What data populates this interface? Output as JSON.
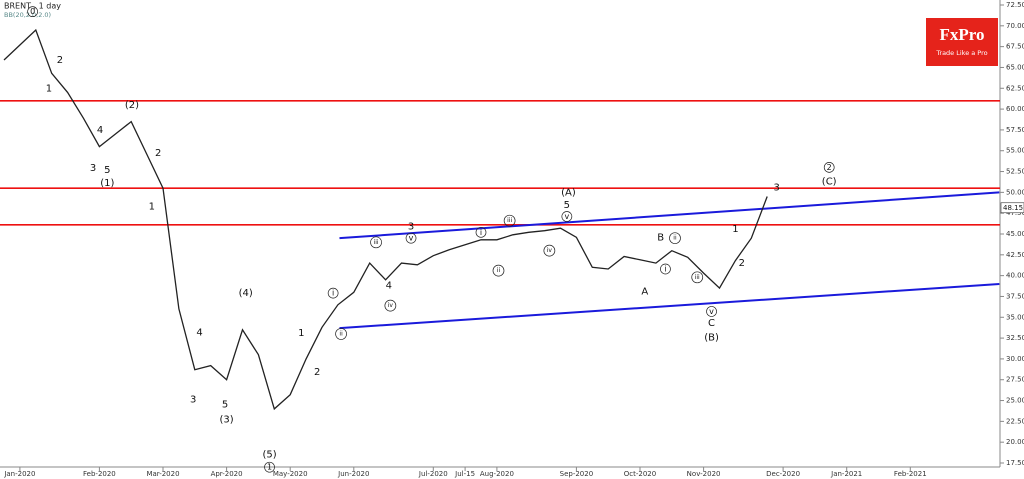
{
  "chart_data": {
    "type": "line",
    "title": "BRENT , 1 day",
    "subtitle": "BB(20,2.0,2.0)",
    "categories": [
      null,
      "Jan-2020",
      null,
      null,
      null,
      null,
      "Feb-2020",
      null,
      null,
      null,
      "Mar-2020",
      null,
      null,
      null,
      "Apr-2020",
      null,
      null,
      null,
      "May-2020",
      null,
      null,
      null,
      "Jun-2020",
      null,
      null,
      null,
      null,
      "Jul-2020",
      null,
      "Jul-15",
      null,
      "Aug-2020",
      null,
      null,
      null,
      null,
      "Sep-2020",
      null,
      null,
      null,
      "Oct-2020",
      null,
      null,
      null,
      "Nov-2020",
      null,
      null,
      null,
      null,
      "Dec-2020",
      null,
      null,
      null,
      "Jan-2021",
      null,
      null,
      null,
      "Feb-2021",
      null,
      null,
      null,
      null,
      null
    ],
    "values": [
      65.9,
      67.7,
      69.5,
      64.3,
      62.0,
      58.9,
      55.5,
      57.0,
      58.5,
      54.5,
      50.5,
      36.0,
      28.7,
      29.2,
      27.5,
      33.5,
      30.5,
      24.0,
      25.7,
      30.0,
      33.8,
      36.5,
      38.0,
      41.5,
      39.5,
      41.5,
      41.3,
      42.4,
      43.1,
      43.7,
      44.3,
      44.3,
      44.9,
      45.2,
      45.4,
      45.7,
      44.6,
      41.0,
      40.8,
      42.3,
      41.9,
      41.5,
      43.0,
      42.2,
      40.3,
      38.5,
      41.8,
      44.5,
      49.5,
      null,
      null,
      null,
      null,
      null,
      null,
      null,
      null,
      null,
      null,
      null,
      null,
      null,
      null
    ],
    "color": "#222222",
    "ylim": [
      17.5,
      72.5
    ],
    "yticks": [
      {
        "value": 17.5,
        "label": "17.50"
      },
      {
        "value": 20,
        "label": "20.00"
      },
      {
        "value": 22.5,
        "label": "22.50"
      },
      {
        "value": 25,
        "label": "25.00"
      },
      {
        "value": 27.5,
        "label": "27.50"
      },
      {
        "value": 30,
        "label": "30.00"
      },
      {
        "value": 32.5,
        "label": "32.50"
      },
      {
        "value": 35,
        "label": "35.00"
      },
      {
        "value": 37.5,
        "label": "37.50"
      },
      {
        "value": 40,
        "label": "40.00"
      },
      {
        "value": 42.5,
        "label": "42.50"
      },
      {
        "value": 45,
        "label": "45.00"
      },
      {
        "value": 47.5,
        "label": "47.50"
      },
      {
        "value": 50,
        "label": "50.00"
      },
      {
        "value": 52.5,
        "label": "52.50"
      },
      {
        "value": 55,
        "label": "55.00"
      },
      {
        "value": 57.5,
        "label": "57.50"
      },
      {
        "value": 60,
        "label": "60.00"
      },
      {
        "value": 62.5,
        "label": "62.50"
      },
      {
        "value": 65,
        "label": "65.00"
      },
      {
        "value": 67.5,
        "label": "67.50"
      },
      {
        "value": 70,
        "label": "70.00"
      },
      {
        "value": 72.5,
        "label": "72.50"
      }
    ],
    "last_price": {
      "value": 48.15,
      "label": "48.15"
    },
    "levels": {
      "color": "#ee1111",
      "values": [
        61.0,
        50.5,
        46.1
      ]
    },
    "trend_lines": [
      {
        "color": "#1a1adb",
        "from": [
          21.1,
          44.5
        ],
        "to": [
          62.6,
          50.0
        ]
      },
      {
        "color": "#1a1adb",
        "from": [
          21.1,
          33.7
        ],
        "to": [
          62.6,
          39.0
        ]
      }
    ],
    "annotations": [
      {
        "text": "0",
        "at": [
          1.8,
          71.7
        ],
        "circled": true
      },
      {
        "text": "1",
        "at": [
          2.83,
          62.5
        ]
      },
      {
        "text": "2",
        "at": [
          3.52,
          65.9
        ]
      },
      {
        "text": "4",
        "at": [
          6.04,
          57.5
        ]
      },
      {
        "text": "3",
        "at": [
          5.6,
          52.9
        ]
      },
      {
        "text": "5",
        "at": [
          6.5,
          52.7
        ]
      },
      {
        "text": "(1)",
        "at": [
          6.5,
          51.1
        ]
      },
      {
        "text": "(2)",
        "at": [
          8.05,
          60.5
        ]
      },
      {
        "text": "2",
        "at": [
          9.7,
          54.7
        ]
      },
      {
        "text": "1",
        "at": [
          9.3,
          48.3
        ]
      },
      {
        "text": "(4)",
        "at": [
          15.2,
          37.9
        ]
      },
      {
        "text": "4",
        "at": [
          12.3,
          33.2
        ]
      },
      {
        "text": "3",
        "at": [
          11.9,
          25.1
        ]
      },
      {
        "text": "5",
        "at": [
          13.9,
          24.5
        ]
      },
      {
        "text": "(3)",
        "at": [
          14.0,
          22.7
        ]
      },
      {
        "text": "(5)",
        "at": [
          16.7,
          18.5
        ]
      },
      {
        "text": "1",
        "at": [
          16.7,
          17.0
        ],
        "circled": true
      },
      {
        "text": "1",
        "at": [
          18.7,
          33.1
        ]
      },
      {
        "text": "2",
        "at": [
          19.7,
          28.4
        ]
      },
      {
        "text": "i",
        "at": [
          20.7,
          37.9
        ],
        "circled": true
      },
      {
        "text": "ii",
        "at": [
          21.2,
          33.0
        ],
        "circled": true
      },
      {
        "text": "iii",
        "at": [
          23.4,
          44.0
        ],
        "circled": true
      },
      {
        "text": "iv",
        "at": [
          24.3,
          36.4
        ],
        "circled": true
      },
      {
        "text": "v",
        "at": [
          25.6,
          44.5
        ],
        "circled": true
      },
      {
        "text": "3",
        "at": [
          25.6,
          45.9
        ]
      },
      {
        "text": "4",
        "at": [
          24.2,
          38.8
        ]
      },
      {
        "text": "i",
        "at": [
          30.0,
          45.2
        ],
        "circled": true
      },
      {
        "text": "ii",
        "at": [
          31.1,
          40.6
        ],
        "circled": true
      },
      {
        "text": "iii",
        "at": [
          31.8,
          46.6
        ],
        "circled": true
      },
      {
        "text": "iv",
        "at": [
          34.3,
          43.0
        ],
        "circled": true
      },
      {
        "text": "v",
        "at": [
          35.4,
          47.1
        ],
        "circled": true
      },
      {
        "text": "5",
        "at": [
          35.4,
          48.5
        ]
      },
      {
        "text": "(A)",
        "at": [
          35.5,
          50.0
        ]
      },
      {
        "text": "B",
        "at": [
          41.3,
          44.6
        ]
      },
      {
        "text": "ii",
        "at": [
          42.2,
          44.5
        ],
        "circled": true
      },
      {
        "text": "A",
        "at": [
          40.3,
          38.1
        ]
      },
      {
        "text": "i",
        "at": [
          41.6,
          40.8
        ],
        "circled": true
      },
      {
        "text": "iii",
        "at": [
          43.6,
          39.8
        ],
        "circled": true
      },
      {
        "text": "v",
        "at": [
          44.5,
          35.7
        ],
        "circled": true
      },
      {
        "text": "C",
        "at": [
          44.5,
          34.3
        ]
      },
      {
        "text": "(B)",
        "at": [
          44.5,
          32.6
        ]
      },
      {
        "text": "1",
        "at": [
          46.0,
          45.6
        ]
      },
      {
        "text": "2",
        "at": [
          46.4,
          41.5
        ]
      },
      {
        "text": "3",
        "at": [
          48.6,
          50.6
        ]
      },
      {
        "text": "2",
        "at": [
          51.9,
          53.0
        ],
        "circled": true
      },
      {
        "text": "(C)",
        "at": [
          51.9,
          51.3
        ]
      }
    ]
  },
  "logo": {
    "name": "FxPro",
    "tagline": "Trade Like a Pro"
  }
}
